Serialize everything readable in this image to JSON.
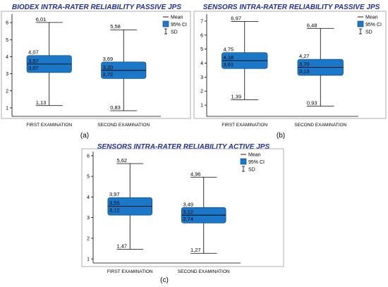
{
  "colors": {
    "box_fill": "#1b78c8",
    "box_stroke": "#14507f",
    "title": "#1f2f9a"
  },
  "legend": {
    "mean": "Mean",
    "ci": "95% CI",
    "sd": "SD"
  },
  "chart_data": [
    {
      "type": "box",
      "caption": "(a)",
      "title": "BIODEX INTRA-RATER RELIABILITY PASSIVE JPS",
      "ylim": [
        0.5,
        6.5
      ],
      "yticks": [
        1,
        2,
        3,
        4,
        5,
        6
      ],
      "categories": [
        "FIRST EXAMINATION",
        "SECOND EXAMINATION"
      ],
      "series": [
        {
          "upper_sd": 6.01,
          "ci_upper": 4.07,
          "mean": 3.57,
          "ci_lower": 3.07,
          "lower_sd": 1.13,
          "labels": [
            "6,01",
            "4,07",
            "3,57",
            "3,07",
            "1,13"
          ]
        },
        {
          "upper_sd": 5.58,
          "ci_upper": 3.69,
          "mean": 3.2,
          "ci_lower": 2.72,
          "lower_sd": 0.83,
          "labels": [
            "5,58",
            "3,69",
            "3,20",
            "2,72",
            "0,83"
          ]
        }
      ]
    },
    {
      "type": "box",
      "caption": "(b)",
      "title": "SENSORS INTRA-RATER RELIABILITY PASSIVE JPS",
      "ylim": [
        0.2,
        7.5
      ],
      "yticks": [
        1,
        2,
        3,
        4,
        5,
        6,
        7
      ],
      "categories": [
        "FIRST EXAMINATION",
        "SECOND EXAMINATION"
      ],
      "series": [
        {
          "upper_sd": 6.97,
          "ci_upper": 4.75,
          "mean": 4.18,
          "ci_lower": 3.61,
          "lower_sd": 1.39,
          "labels": [
            "6,97",
            "4,75",
            "4,18",
            "3,61",
            "1,39"
          ]
        },
        {
          "upper_sd": 6.48,
          "ci_upper": 4.27,
          "mean": 3.7,
          "ci_lower": 3.13,
          "lower_sd": 0.93,
          "labels": [
            "6,48",
            "4,27",
            "3,70",
            "3,13",
            "0,93"
          ]
        }
      ]
    },
    {
      "type": "box",
      "caption": "(c)",
      "title": "SENSORS INTRA-RATER RELIABILITY ACTIVE JPS",
      "ylim": [
        0.8,
        6.2
      ],
      "yticks": [
        1,
        2,
        3,
        4,
        5,
        6
      ],
      "categories": [
        "FIRST EXAMINATION",
        "SECOND EXAMINATION"
      ],
      "series": [
        {
          "upper_sd": 5.62,
          "ci_upper": 3.97,
          "mean": 3.55,
          "ci_lower": 3.12,
          "lower_sd": 1.47,
          "labels": [
            "5,62",
            "3,97",
            "3,55",
            "3,12",
            "1,47"
          ]
        },
        {
          "upper_sd": 4.96,
          "ci_upper": 3.49,
          "mean": 3.12,
          "ci_lower": 2.74,
          "lower_sd": 1.27,
          "labels": [
            "4,96",
            "3,49",
            "3,12",
            "2,74",
            "1,27"
          ]
        }
      ]
    }
  ]
}
